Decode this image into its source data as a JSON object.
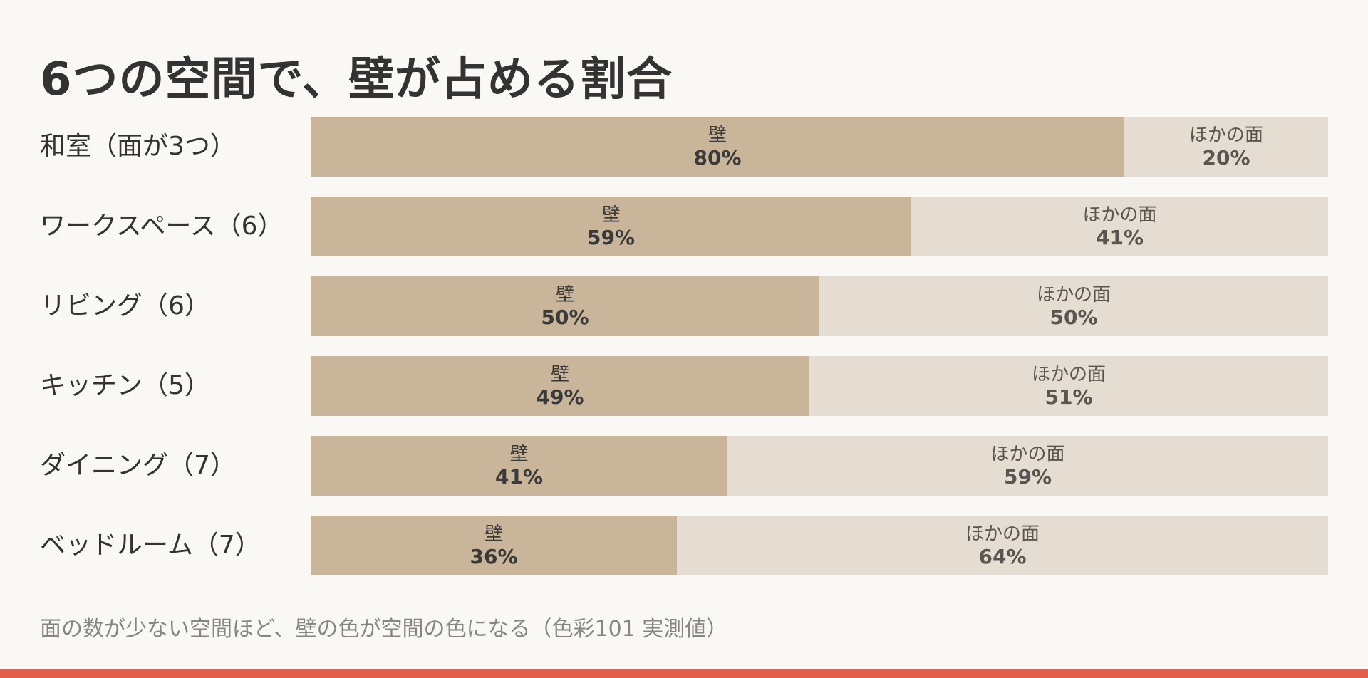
{
  "colors": {
    "background": "#faf8f4",
    "wall": "#c8b59a",
    "other": "#e6ddd2",
    "accent": "#e35f4d",
    "text": "#333333",
    "footnote": "#888580"
  },
  "footnote": "面の数が少ない空間ほど、壁の色が空間の色になる（色彩101 実測値）",
  "chart_data": {
    "type": "bar",
    "stacked": true,
    "orientation": "horizontal",
    "title": "6つの空間で、壁が占める割合",
    "categories": [
      "和室（面が3つ）",
      "ワークスペース（6）",
      "リビング（6）",
      "キッチン（5）",
      "ダイニング（7）",
      "ベッドルーム（7）"
    ],
    "series": [
      {
        "name": "壁",
        "values": [
          80,
          59,
          50,
          49,
          41,
          36
        ],
        "labels": [
          "80%",
          "59%",
          "50%",
          "49%",
          "41%",
          "36%"
        ]
      },
      {
        "name": "ほかの面",
        "values": [
          20,
          41,
          50,
          51,
          59,
          64
        ],
        "labels": [
          "20%",
          "41%",
          "50%",
          "51%",
          "59%",
          "64%"
        ]
      }
    ],
    "xlim": [
      0,
      100
    ],
    "grid": false,
    "legend": "none"
  }
}
